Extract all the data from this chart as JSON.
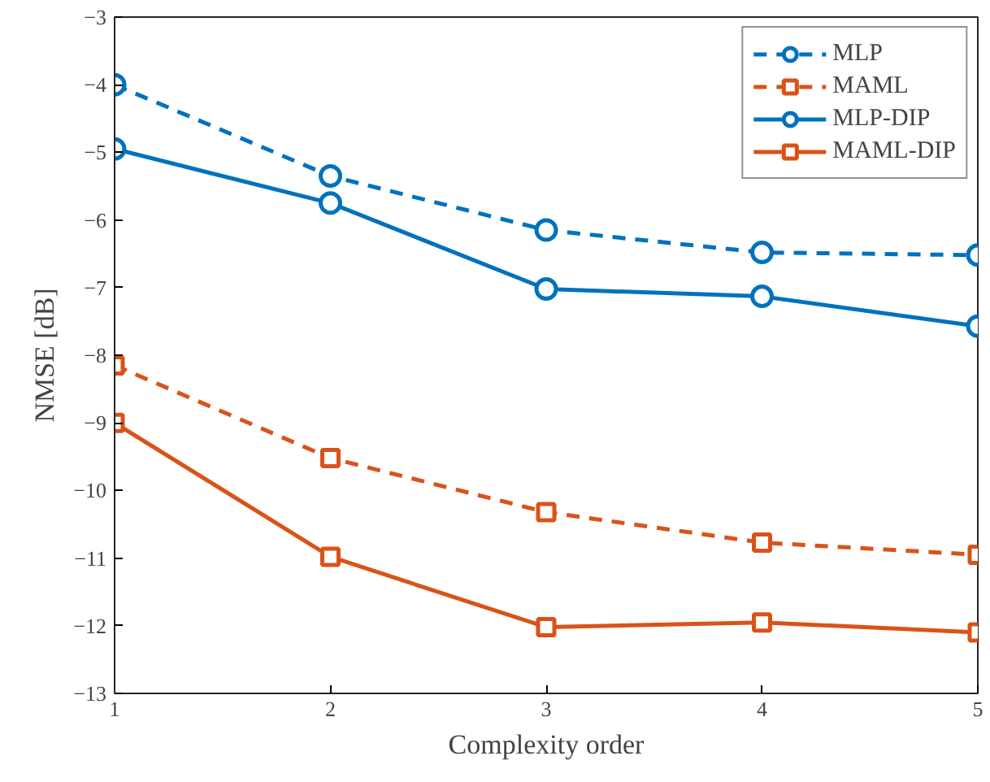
{
  "chart_data": {
    "type": "line",
    "xlabel": "Complexity order",
    "ylabel": "NMSE [dB]",
    "x": [
      1,
      2,
      3,
      4,
      5
    ],
    "xlim": [
      1,
      5
    ],
    "xticks": [
      1,
      2,
      3,
      4,
      5
    ],
    "ylim": [
      -13,
      -3
    ],
    "yticks": [
      -13,
      -12,
      -11,
      -10,
      -9,
      -8,
      -7,
      -6,
      -5,
      -4,
      -3
    ],
    "grid": false,
    "legend": "top right",
    "series": [
      {
        "name": "MLP",
        "color": "#0072bd",
        "marker": "circle",
        "line_style": "dashed",
        "values": [
          -4.0,
          -5.35,
          -6.15,
          -6.48,
          -6.52
        ]
      },
      {
        "name": "MAML",
        "color": "#d95319",
        "marker": "square",
        "line_style": "dashed",
        "values": [
          -8.15,
          -9.52,
          -10.32,
          -10.77,
          -10.95
        ]
      },
      {
        "name": "MLP-DIP",
        "color": "#0072bd",
        "marker": "circle",
        "line_style": "solid",
        "values": [
          -4.95,
          -5.75,
          -7.02,
          -7.13,
          -7.57
        ]
      },
      {
        "name": "MAML-DIP",
        "color": "#d95319",
        "marker": "square",
        "line_style": "solid",
        "values": [
          -9.0,
          -10.98,
          -12.02,
          -11.95,
          -12.1
        ]
      }
    ]
  }
}
